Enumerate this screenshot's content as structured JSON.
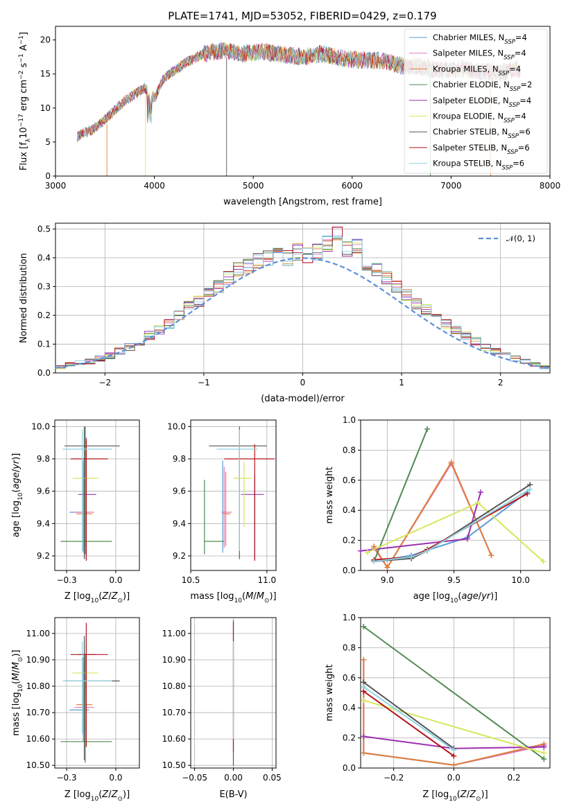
{
  "title": "PLATE=1741, MJD=53052, FIBERID=0429, z=0.179",
  "series_names": [
    "Chabrier MILES, N$_{SSP}$=4",
    "Salpeter MILES, N$_{SSP}$=4",
    "Kroupa MILES, N$_{SSP}$=4",
    "Chabrier ELODIE, N$_{SSP}$=2",
    "Salpeter ELODIE, N$_{SSP}$=4",
    "Kroupa ELODIE, N$_{SSP}$=4",
    "Chabrier STELIB, N$_{SSP}$=6",
    "Salpeter STELIB, N$_{SSP}$=6",
    "Kroupa STELIB, N$_{SSP}$=6"
  ],
  "legend_parts": [
    {
      "pre": "Chabrier MILES, N",
      "sub": "SSP",
      "post": "=4"
    },
    {
      "pre": "Salpeter MILES, N",
      "sub": "SSP",
      "post": "=4"
    },
    {
      "pre": "Kroupa MILES, N",
      "sub": "SSP",
      "post": "=4"
    },
    {
      "pre": "Chabrier ELODIE, N",
      "sub": "SSP",
      "post": "=2"
    },
    {
      "pre": "Salpeter ELODIE, N",
      "sub": "SSP",
      "post": "=4"
    },
    {
      "pre": "Kroupa ELODIE, N",
      "sub": "SSP",
      "post": "=4"
    },
    {
      "pre": "Chabrier STELIB, N",
      "sub": "SSP",
      "post": "=6"
    },
    {
      "pre": "Salpeter STELIB, N",
      "sub": "SSP",
      "post": "=6"
    },
    {
      "pre": "Kroupa STELIB, N",
      "sub": "SSP",
      "post": "=6"
    }
  ],
  "colors": [
    "#5b9bd5",
    "#e377c2",
    "#dd7f3a",
    "#4f8a4f",
    "#9b30b0",
    "#d4e85a",
    "#555555",
    "#b5141a",
    "#8fd3e0"
  ],
  "chart_data": [
    {
      "id": "spectrum",
      "type": "line",
      "title": "PLATE=1741, MJD=53052, FIBERID=0429, z=0.179",
      "xlabel": "wavelength [Angstrom, rest frame]",
      "ylabel": "Flux [f_λ 10^-17 erg cm^-2 s^-1 A^-1]",
      "xlim": [
        3000,
        8000
      ],
      "ylim": [
        0,
        22
      ],
      "xticks": [
        3000,
        4000,
        5000,
        6000,
        7000,
        8000
      ],
      "yticks": [
        0,
        5,
        10,
        15,
        20
      ],
      "legend": "top-right",
      "x": [
        3220,
        3400,
        3550,
        3700,
        3900,
        4000,
        4100,
        4300,
        4500,
        4700,
        4900,
        5100,
        5300,
        5500,
        5700,
        5900,
        6100,
        6300,
        6500,
        6700,
        6900,
        7100,
        7300,
        7500,
        7700
      ],
      "y": [
        5.8,
        7.0,
        9.0,
        11.0,
        13.0,
        11.5,
        14.5,
        16.5,
        18.0,
        18.5,
        18.0,
        18.3,
        17.8,
        17.5,
        18.0,
        17.3,
        17.0,
        17.0,
        16.2,
        16.0,
        15.5,
        15.8,
        15.3,
        15.2,
        15.8
      ]
    },
    {
      "id": "residuals",
      "type": "histogram",
      "xlabel": "(data-model)/error",
      "ylabel": "Normed distribution",
      "xlim": [
        -2.5,
        2.5
      ],
      "ylim": [
        0,
        0.52
      ],
      "xticks": [
        -2,
        -1,
        0,
        1,
        2
      ],
      "yticks": [
        0.0,
        0.1,
        0.2,
        0.3,
        0.4,
        0.5
      ],
      "legend": "top-right",
      "reference_label": "𝒩(0, 1)",
      "bin_centers": [
        -2.45,
        -2.35,
        -2.25,
        -2.15,
        -2.05,
        -1.95,
        -1.85,
        -1.75,
        -1.65,
        -1.55,
        -1.45,
        -1.35,
        -1.25,
        -1.15,
        -1.05,
        -0.95,
        -0.85,
        -0.75,
        -0.65,
        -0.55,
        -0.45,
        -0.35,
        -0.25,
        -0.15,
        -0.05,
        0.05,
        0.15,
        0.25,
        0.35,
        0.45,
        0.55,
        0.65,
        0.75,
        0.85,
        0.95,
        1.05,
        1.15,
        1.25,
        1.35,
        1.45,
        1.55,
        1.65,
        1.75,
        1.85,
        1.95,
        2.05,
        2.15,
        2.25,
        2.35,
        2.45
      ],
      "values": [
        0.02,
        0.03,
        0.035,
        0.04,
        0.05,
        0.06,
        0.075,
        0.09,
        0.11,
        0.13,
        0.15,
        0.17,
        0.2,
        0.23,
        0.25,
        0.28,
        0.3,
        0.33,
        0.36,
        0.37,
        0.39,
        0.4,
        0.41,
        0.4,
        0.42,
        0.41,
        0.42,
        0.45,
        0.48,
        0.43,
        0.44,
        0.38,
        0.36,
        0.33,
        0.3,
        0.27,
        0.24,
        0.22,
        0.2,
        0.17,
        0.15,
        0.13,
        0.11,
        0.09,
        0.075,
        0.06,
        0.05,
        0.04,
        0.03,
        0.02
      ]
    },
    {
      "id": "age-vs-z",
      "type": "errorbar",
      "xlabel": "Z [log10(Z/Z⊙)]",
      "ylabel": "age [log10(age/yr)]",
      "xlim": [
        -0.31,
        0.12
      ],
      "ylim": [
        9.11,
        10.04
      ],
      "xticks": [
        -0.25,
        0.0
      ],
      "yticks": [
        9.2,
        9.4,
        9.6,
        9.8,
        10.0
      ],
      "points": [
        {
          "s": 0,
          "x": -0.165,
          "y": 9.47,
          "xerr": [
            0.07,
            0.03
          ],
          "yerr": [
            0.25,
            0.32
          ]
        },
        {
          "s": 1,
          "x": -0.16,
          "y": 9.47,
          "xerr": [
            0.05,
            0.05
          ],
          "yerr": [
            0.22,
            0.28
          ]
        },
        {
          "s": 2,
          "x": -0.16,
          "y": 9.46,
          "xerr": [
            0.04,
            0.04
          ],
          "yerr": [
            0.2,
            0.26
          ]
        },
        {
          "s": 3,
          "x": -0.155,
          "y": 9.29,
          "xerr": [
            0.125,
            0.135
          ],
          "yerr": [
            0.08,
            0.71
          ]
        },
        {
          "s": 4,
          "x": -0.15,
          "y": 9.58,
          "xerr": [
            0.04,
            0.05
          ],
          "yerr": [
            0.4,
            0.35
          ]
        },
        {
          "s": 5,
          "x": -0.16,
          "y": 9.68,
          "xerr": [
            0.06,
            0.07
          ],
          "yerr": [
            0.4,
            0.3
          ]
        },
        {
          "s": 6,
          "x": -0.16,
          "y": 9.88,
          "xerr": [
            0.1,
            0.18
          ],
          "yerr": [
            0.7,
            0.12
          ]
        },
        {
          "s": 7,
          "x": -0.15,
          "y": 9.8,
          "xerr": [
            0.08,
            0.11
          ],
          "yerr": [
            0.63,
            0.12
          ]
        },
        {
          "s": 8,
          "x": -0.17,
          "y": 9.86,
          "xerr": [
            0.1,
            0.15
          ],
          "yerr": [
            0.63,
            0.12
          ]
        }
      ]
    },
    {
      "id": "age-vs-mass",
      "type": "errorbar",
      "xlabel": "mass [log10(M/M⊙)]",
      "ylabel": "",
      "xlim": [
        10.5,
        11.06
      ],
      "ylim": [
        9.11,
        10.04
      ],
      "xticks": [
        10.5,
        11.0
      ],
      "yticks": [
        9.2,
        9.4,
        9.6,
        9.8,
        10.0
      ],
      "points": [
        {
          "s": 0,
          "x": 10.71,
          "y": 9.47,
          "xerr": [
            0.0,
            0.02
          ],
          "yerr": [
            0.25,
            0.32
          ]
        },
        {
          "s": 1,
          "x": 10.72,
          "y": 9.47,
          "xerr": [
            0.02,
            0.05
          ],
          "yerr": [
            0.22,
            0.28
          ]
        },
        {
          "s": 2,
          "x": 10.73,
          "y": 9.46,
          "xerr": [
            0.02,
            0.03
          ],
          "yerr": [
            0.2,
            0.26
          ]
        },
        {
          "s": 3,
          "x": 10.59,
          "y": 9.29,
          "xerr": [
            0.0,
            0.13
          ],
          "yerr": [
            0.08,
            0.38
          ]
        },
        {
          "s": 4,
          "x": 10.92,
          "y": 9.58,
          "xerr": [
            0.09,
            0.06
          ],
          "yerr": [
            0.4,
            0.12
          ]
        },
        {
          "s": 5,
          "x": 10.85,
          "y": 9.68,
          "xerr": [
            0.07,
            0.05
          ],
          "yerr": [
            0.3,
            0.1
          ]
        },
        {
          "s": 6,
          "x": 10.82,
          "y": 9.88,
          "xerr": [
            0.2,
            0.18
          ],
          "yerr": [
            0.7,
            0.12
          ]
        },
        {
          "s": 7,
          "x": 10.92,
          "y": 9.8,
          "xerr": [
            0.2,
            0.13
          ],
          "yerr": [
            0.63,
            0.09
          ]
        },
        {
          "s": 8,
          "x": 10.82,
          "y": 9.86,
          "xerr": [
            0.15,
            0.12
          ],
          "yerr": [
            0.63,
            0.12
          ]
        }
      ]
    },
    {
      "id": "weight-vs-age",
      "type": "line",
      "xlabel": "age [log10(age/yr)]",
      "ylabel": "mass weight",
      "xlim": [
        8.8,
        10.22
      ],
      "ylim": [
        0,
        1.0
      ],
      "xticks": [
        9.0,
        9.5,
        10.0
      ],
      "yticks": [
        0.0,
        0.2,
        0.4,
        0.6,
        0.8,
        1.0
      ],
      "series": [
        {
          "s": 0,
          "x": [
            8.9,
            9.18,
            9.6,
            10.05
          ],
          "y": [
            0.06,
            0.1,
            0.22,
            0.52
          ]
        },
        {
          "s": 1,
          "x": [
            8.9,
            9.0,
            9.48,
            9.78
          ],
          "y": [
            0.15,
            0.02,
            0.71,
            0.1
          ]
        },
        {
          "s": 2,
          "x": [
            8.9,
            9.0,
            9.48,
            9.78
          ],
          "y": [
            0.16,
            0.02,
            0.72,
            0.1
          ]
        },
        {
          "s": 3,
          "x": [
            8.9,
            9.3
          ],
          "y": [
            0.06,
            0.94
          ]
        },
        {
          "s": 4,
          "x": [
            8.8,
            9.6,
            9.7
          ],
          "y": [
            0.13,
            0.21,
            0.52
          ]
        },
        {
          "s": 5,
          "x": [
            8.85,
            9.68,
            10.17
          ],
          "y": [
            0.12,
            0.45,
            0.06
          ]
        },
        {
          "s": 6,
          "x": [
            8.9,
            9.18,
            9.3,
            10.07
          ],
          "y": [
            0.06,
            0.08,
            0.13,
            0.57
          ]
        },
        {
          "s": 7,
          "x": [
            8.9,
            9.18,
            9.3,
            10.05
          ],
          "y": [
            0.07,
            0.09,
            0.14,
            0.51
          ]
        },
        {
          "s": 8,
          "x": [
            8.9,
            9.18,
            9.3,
            10.07
          ],
          "y": [
            0.06,
            0.09,
            0.13,
            0.54
          ]
        }
      ]
    },
    {
      "id": "mass-vs-z",
      "type": "errorbar",
      "xlabel": "Z [log10(Z/Z⊙)]",
      "ylabel": "mass [log10(M/M⊙)]",
      "xlim": [
        -0.31,
        0.12
      ],
      "ylim": [
        10.49,
        11.06
      ],
      "xticks": [
        -0.25,
        0.0
      ],
      "yticks": [
        10.5,
        10.6,
        10.7,
        10.8,
        10.9,
        11.0
      ],
      "points": [
        {
          "s": 0,
          "x": -0.165,
          "y": 10.71,
          "xerr": [
            0.07,
            0.03
          ],
          "yerr": [
            0.12,
            0.2
          ]
        },
        {
          "s": 1,
          "x": -0.16,
          "y": 10.72,
          "xerr": [
            0.05,
            0.05
          ],
          "yerr": [
            0.1,
            0.2
          ]
        },
        {
          "s": 2,
          "x": -0.16,
          "y": 10.73,
          "xerr": [
            0.04,
            0.04
          ],
          "yerr": [
            0.1,
            0.2
          ]
        },
        {
          "s": 3,
          "x": -0.155,
          "y": 10.59,
          "xerr": [
            0.125,
            0.135
          ],
          "yerr": [
            0.08,
            0.33
          ]
        },
        {
          "s": 4,
          "x": -0.15,
          "y": 10.92,
          "xerr": [
            0.04,
            0.05
          ],
          "yerr": [
            0.15,
            0.08
          ]
        },
        {
          "s": 5,
          "x": -0.16,
          "y": 10.85,
          "xerr": [
            0.06,
            0.07
          ],
          "yerr": [
            0.2,
            0.1
          ]
        },
        {
          "s": 6,
          "x": -0.16,
          "y": 10.82,
          "xerr": [
            0.1,
            0.18
          ],
          "yerr": [
            0.3,
            0.17
          ]
        },
        {
          "s": 7,
          "x": -0.15,
          "y": 10.92,
          "xerr": [
            0.08,
            0.11
          ],
          "yerr": [
            0.35,
            0.12
          ]
        },
        {
          "s": 8,
          "x": -0.17,
          "y": 10.82,
          "xerr": [
            0.1,
            0.15
          ],
          "yerr": [
            0.2,
            0.15
          ]
        }
      ]
    },
    {
      "id": "mass-vs-ebv",
      "type": "errorbar",
      "xlabel": "E(B-V)",
      "ylabel": "",
      "xlim": [
        -0.055,
        0.055
      ],
      "ylim": [
        10.49,
        11.06
      ],
      "xticks": [
        -0.05,
        0.0,
        0.05
      ],
      "yticks": [
        10.5,
        10.6,
        10.7,
        10.8,
        10.9,
        11.0
      ],
      "points": [
        {
          "s": 6,
          "x": 0.0,
          "y": 10.8,
          "xerr": [
            0,
            0
          ],
          "yerr": [
            0.3,
            0.25
          ]
        },
        {
          "s": 7,
          "x": 0.0,
          "y": 10.85,
          "xerr": [
            0,
            0
          ],
          "yerr": [
            0.3,
            0.19
          ]
        },
        {
          "s": 8,
          "x": 0.0,
          "y": 10.8,
          "xerr": [
            0,
            0
          ],
          "yerr": [
            0.2,
            0.17
          ]
        }
      ]
    },
    {
      "id": "weight-vs-z",
      "type": "line",
      "xlabel": "Z [log10(Z/Z⊙)]",
      "ylabel": "mass weight",
      "xlim": [
        -0.31,
        0.32
      ],
      "ylim": [
        0,
        1.0
      ],
      "xticks": [
        -0.2,
        0.0,
        0.2
      ],
      "yticks": [
        0.0,
        0.2,
        0.4,
        0.6,
        0.8,
        1.0
      ],
      "series": [
        {
          "s": 0,
          "x": [
            -0.3,
            0.0,
            0.3
          ],
          "y": [
            0.1,
            0.02,
            0.15
          ]
        },
        {
          "s": 1,
          "x": [
            -0.3,
            -0.3,
            0.0,
            0.3
          ],
          "y": [
            0.72,
            0.1,
            0.02,
            0.15
          ]
        },
        {
          "s": 2,
          "x": [
            -0.3,
            -0.3,
            0.0,
            0.3
          ],
          "y": [
            0.72,
            0.1,
            0.02,
            0.16
          ]
        },
        {
          "s": 3,
          "x": [
            -0.3,
            0.3
          ],
          "y": [
            0.94,
            0.06
          ]
        },
        {
          "s": 4,
          "x": [
            -0.3,
            0.0,
            0.3
          ],
          "y": [
            0.21,
            0.13,
            0.14
          ]
        },
        {
          "s": 5,
          "x": [
            -0.3,
            0.3
          ],
          "y": [
            0.45,
            0.1
          ]
        },
        {
          "s": 6,
          "x": [
            -0.3,
            0.0
          ],
          "y": [
            0.57,
            0.13
          ]
        },
        {
          "s": 7,
          "x": [
            -0.3,
            0.0
          ],
          "y": [
            0.51,
            0.08
          ]
        },
        {
          "s": 8,
          "x": [
            -0.3,
            0.0
          ],
          "y": [
            0.54,
            0.12
          ]
        }
      ]
    }
  ]
}
